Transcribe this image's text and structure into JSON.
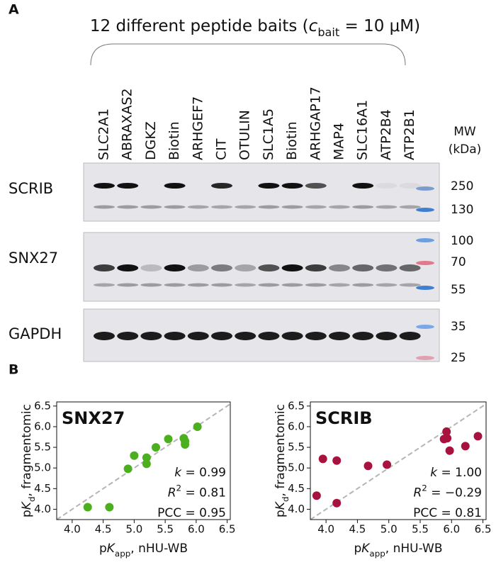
{
  "panel_a": {
    "label": "A",
    "title": {
      "prefix": "12 different peptide baits (",
      "symbol": "c",
      "subscript": "bait",
      "suffix": " = 10 μM)"
    },
    "lanes": [
      "SLC2A1",
      "ABRAXAS2",
      "DGKZ",
      "Biotin",
      "ARHGEF7",
      "CIT",
      "OTULIN",
      "SLC1A5",
      "Biotin",
      "ARHGAP17",
      "MAP4",
      "SLC16A1",
      "ATP2B4",
      "ATP2B1"
    ],
    "mw_title": [
      "MW",
      "(kDa)"
    ],
    "blots": [
      "SCRIB",
      "SNX27",
      "GAPDH"
    ],
    "mw_markers": [
      "250",
      "130",
      "100",
      "70",
      "55",
      "35",
      "25"
    ]
  },
  "panel_b": {
    "label": "B"
  },
  "chart_data": [
    {
      "type": "scatter",
      "title": "SNX27",
      "color": "#4caf1f",
      "x": [
        4.25,
        4.6,
        4.9,
        5.0,
        5.2,
        5.2,
        5.35,
        5.55,
        5.8,
        5.82,
        5.82,
        6.02
      ],
      "y": [
        4.05,
        4.05,
        4.98,
        5.3,
        5.1,
        5.25,
        5.5,
        5.7,
        5.72,
        5.65,
        5.57,
        6.0
      ],
      "xlim": [
        3.75,
        6.55
      ],
      "ylim": [
        3.75,
        6.6
      ],
      "xticks": [
        {
          "value": 4,
          "label": "4.0"
        },
        4.5,
        {
          "value": 5,
          "label": "5.0"
        },
        5.5,
        {
          "value": 6,
          "label": "6.0"
        },
        6.5
      ],
      "yticks": [
        {
          "value": 4,
          "label": "4.0"
        },
        4.5,
        {
          "value": 5,
          "label": "5.0"
        },
        5.5,
        {
          "value": 6,
          "label": "6.0"
        },
        6.5
      ],
      "diagonal": true,
      "xlabel": {
        "prefix": "p",
        "symbol": "K",
        "subscript": "app",
        "suffix": ", nHU-WB"
      },
      "ylabel": {
        "prefix": "p",
        "symbol": "K",
        "subscript": "d",
        "suffix": ", fragmentomic"
      },
      "annotations": [
        {
          "symbol": "k",
          "text": " = 0.99"
        },
        {
          "symbol": "R",
          "sup": "2",
          "text": " = 0.81"
        },
        {
          "text": "PCC = 0.95"
        }
      ]
    },
    {
      "type": "scatter",
      "title": "SCRIB",
      "color": "#a8123e",
      "x": [
        3.85,
        3.95,
        4.17,
        4.17,
        4.67,
        4.97,
        5.88,
        5.92,
        5.93,
        5.97,
        6.22,
        6.42
      ],
      "y": [
        4.33,
        5.22,
        5.18,
        4.15,
        5.05,
        5.08,
        5.7,
        5.88,
        5.72,
        5.42,
        5.53,
        5.77
      ],
      "xlim": [
        3.75,
        6.55
      ],
      "ylim": [
        3.75,
        6.6
      ],
      "xticks": [
        {
          "value": 4,
          "label": "4.0"
        },
        4.5,
        {
          "value": 5,
          "label": "5.0"
        },
        5.5,
        {
          "value": 6,
          "label": "6.0"
        },
        6.5
      ],
      "yticks": [
        {
          "value": 4,
          "label": "4.0"
        },
        4.5,
        {
          "value": 5,
          "label": "5.0"
        },
        5.5,
        {
          "value": 6,
          "label": "6.0"
        },
        6.5
      ],
      "diagonal": true,
      "xlabel": {
        "prefix": "p",
        "symbol": "K",
        "subscript": "app",
        "suffix": ", nHU-WB"
      },
      "ylabel": {
        "prefix": "p",
        "symbol": "K",
        "subscript": "d",
        "suffix": ", fragmentomic"
      },
      "annotations": [
        {
          "symbol": "k",
          "text": " = 1.00"
        },
        {
          "symbol": "R",
          "sup": "2",
          "text": " = −0.29"
        },
        {
          "text": "PCC = 0.81"
        }
      ]
    }
  ]
}
